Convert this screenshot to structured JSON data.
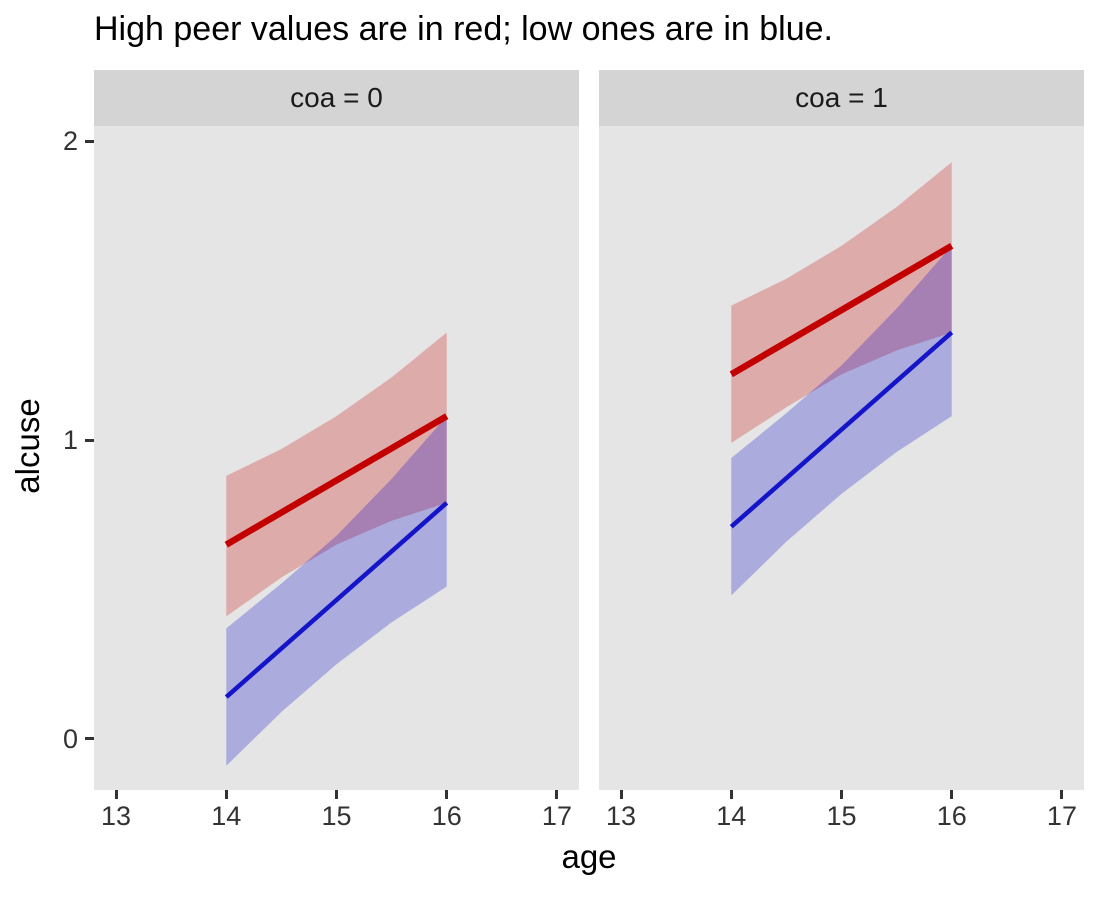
{
  "title": "High peer values are in red; low ones are in blue.",
  "axes": {
    "x_label": "age",
    "y_label": "alcuse"
  },
  "colors": {
    "background": "#FFFFFF",
    "panel_background": "#E5E5E5",
    "strip_background": "#D4D4D4",
    "strip_text": "#1A1A1A",
    "tick_text": "#333333",
    "high_peer_red": "#C30000",
    "low_peer_blue": "#1414C8"
  },
  "chart_data": {
    "type": "line",
    "title": "High peer values are in red; low ones are in blue.",
    "xlabel": "age",
    "ylabel": "alcuse",
    "xlim": [
      12.8,
      17.2
    ],
    "ylim": [
      -0.171,
      2.051
    ],
    "x_ticks": [
      13,
      14,
      15,
      16,
      17
    ],
    "y_ticks": [
      0,
      1,
      2
    ],
    "grid": false,
    "legend": "none",
    "facets": [
      {
        "label": "coa = 0",
        "series": [
          {
            "name": "high-peer",
            "color": "#C30000",
            "fill": "#CD0000",
            "line_width": 6.5,
            "x": [
              14,
              16
            ],
            "y": [
              0.65,
              1.08
            ],
            "ribbon": {
              "x": [
                14,
                14.5,
                15,
                15.5,
                16
              ],
              "lower": [
                0.41,
                0.54,
                0.65,
                0.73,
                0.79
              ],
              "upper": [
                0.88,
                0.97,
                1.08,
                1.21,
                1.36
              ]
            }
          },
          {
            "name": "low-peer",
            "color": "#1414C8",
            "fill": "#0000CD",
            "line_width": 4.5,
            "x": [
              14,
              16
            ],
            "y": [
              0.14,
              0.79
            ],
            "ribbon": {
              "x": [
                14,
                14.5,
                15,
                15.5,
                16
              ],
              "lower": [
                -0.09,
                0.09,
                0.25,
                0.39,
                0.51
              ],
              "upper": [
                0.37,
                0.52,
                0.68,
                0.87,
                1.08
              ]
            }
          }
        ]
      },
      {
        "label": "coa = 1",
        "series": [
          {
            "name": "high-peer",
            "color": "#C30000",
            "fill": "#CD0000",
            "line_width": 6.5,
            "x": [
              14,
              16
            ],
            "y": [
              1.22,
              1.65
            ],
            "ribbon": {
              "x": [
                14,
                14.5,
                15,
                15.5,
                16
              ],
              "lower": [
                0.99,
                1.11,
                1.22,
                1.3,
                1.36
              ],
              "upper": [
                1.45,
                1.54,
                1.65,
                1.78,
                1.93
              ]
            }
          },
          {
            "name": "low-peer",
            "color": "#1414C8",
            "fill": "#0000CD",
            "line_width": 4.5,
            "x": [
              14,
              16
            ],
            "y": [
              0.71,
              1.36
            ],
            "ribbon": {
              "x": [
                14,
                14.5,
                15,
                15.5,
                16
              ],
              "lower": [
                0.48,
                0.66,
                0.82,
                0.96,
                1.08
              ],
              "upper": [
                0.94,
                1.09,
                1.25,
                1.44,
                1.65
              ]
            }
          }
        ]
      }
    ]
  }
}
